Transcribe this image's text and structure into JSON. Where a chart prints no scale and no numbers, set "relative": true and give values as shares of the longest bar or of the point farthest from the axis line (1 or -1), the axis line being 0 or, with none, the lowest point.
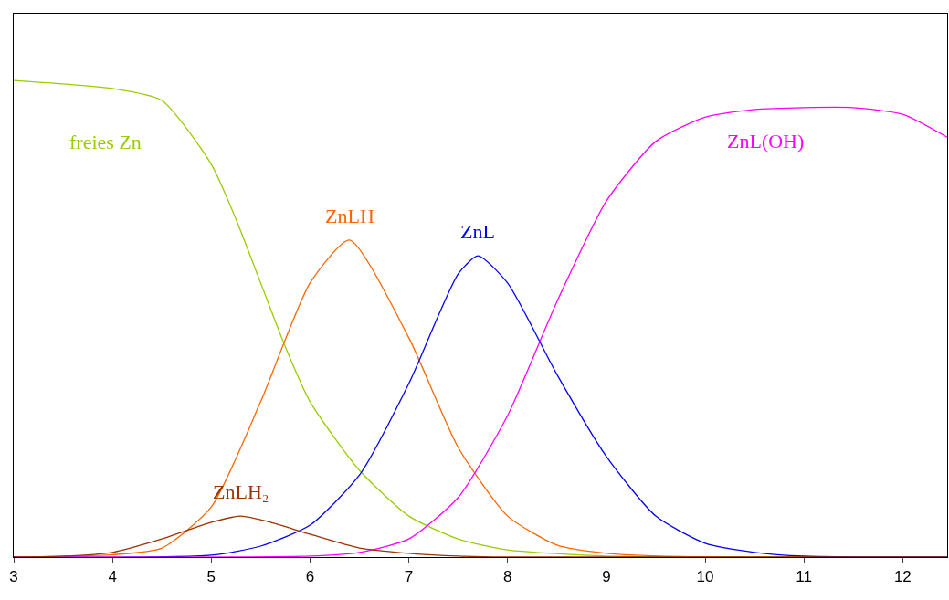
{
  "chart_data": {
    "type": "line",
    "relative": true,
    "xlim": [
      3,
      12.45
    ],
    "xticks": [
      3,
      4,
      5,
      6,
      7,
      8,
      9,
      10,
      11,
      12
    ],
    "legend": false,
    "marker": "none",
    "line_style": "solid",
    "series": [
      {
        "name": "freies Zn",
        "color": "#99cc00",
        "x": [
          3,
          4,
          4.5,
          5,
          5.25,
          5.5,
          5.75,
          6,
          6.5,
          7,
          7.5,
          8,
          9,
          10,
          12.45
        ],
        "values": [
          1.0,
          0.983,
          0.958,
          0.824,
          0.709,
          0.575,
          0.441,
          0.326,
          0.182,
          0.086,
          0.038,
          0.015,
          0.002,
          0,
          0
        ]
      },
      {
        "name": "ZnLH",
        "color": "#ff6600",
        "x": [
          3,
          4,
          4.5,
          5,
          5.5,
          6,
          6.4,
          7,
          7.5,
          8,
          8.5,
          9,
          10,
          12.45
        ],
        "values": [
          0,
          0.005,
          0.019,
          0.105,
          0.326,
          0.575,
          0.665,
          0.46,
          0.23,
          0.086,
          0.025,
          0.008,
          0,
          0
        ]
      },
      {
        "name": "ZnL",
        "color": "#0000ff",
        "x": [
          3,
          5,
          5.5,
          6,
          6.5,
          7,
          7.5,
          7.7,
          8,
          8.5,
          9,
          9.5,
          10,
          10.5,
          11,
          12.45
        ],
        "values": [
          0,
          0.004,
          0.023,
          0.067,
          0.172,
          0.364,
          0.594,
          0.632,
          0.575,
          0.383,
          0.211,
          0.086,
          0.029,
          0.01,
          0.002,
          0
        ]
      },
      {
        "name": "ZnL(OH)",
        "color": "#ff00ff",
        "x": [
          3,
          6,
          6.5,
          7,
          7.5,
          8,
          8.5,
          9,
          9.5,
          10,
          10.5,
          11,
          11.5,
          12,
          12.45
        ],
        "values": [
          0,
          0.002,
          0.01,
          0.038,
          0.125,
          0.297,
          0.536,
          0.747,
          0.872,
          0.923,
          0.939,
          0.943,
          0.943,
          0.929,
          0.881
        ]
      },
      {
        "name": "ZnLH₂",
        "color": "#993300",
        "x": [
          3,
          3.5,
          4,
          4.5,
          5,
          5.3,
          5.6,
          6,
          6.5,
          7,
          7.5,
          8,
          12.45
        ],
        "values": [
          0,
          0.002,
          0.01,
          0.038,
          0.073,
          0.086,
          0.073,
          0.048,
          0.019,
          0.008,
          0.002,
          0,
          0
        ]
      }
    ]
  }
}
